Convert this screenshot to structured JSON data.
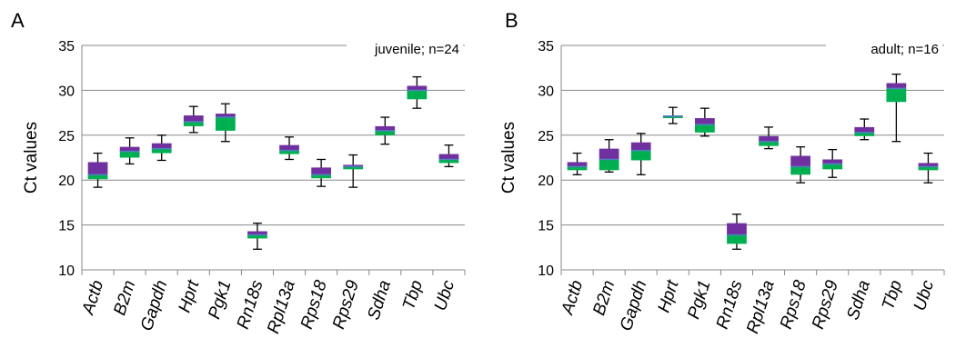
{
  "colors": {
    "upper_box": "#7030a0",
    "lower_box": "#00b050",
    "median": "#4f81bd",
    "whisker": "#000000",
    "grid": "#888888"
  },
  "chart_data": [
    {
      "type": "box",
      "panel_label": "A",
      "annotation": "juvenile; n=24",
      "ylabel": "Ct values",
      "ylim": [
        10,
        35
      ],
      "yticks": [
        10,
        15,
        20,
        25,
        30,
        35
      ],
      "grid": true,
      "categories": [
        "Actb",
        "B2m",
        "Gapdh",
        "Hprt",
        "Pgk1",
        "Rn18s",
        "Rpl13a",
        "Rps18",
        "Rps29",
        "Sdha",
        "Tbp",
        "Ubc"
      ],
      "boxes": [
        {
          "min": 19.2,
          "q1": 20.1,
          "median": 20.6,
          "q3": 22.0,
          "max": 23.0
        },
        {
          "min": 21.8,
          "q1": 22.5,
          "median": 23.2,
          "q3": 23.7,
          "max": 24.7
        },
        {
          "min": 22.2,
          "q1": 23.0,
          "median": 23.5,
          "q3": 24.1,
          "max": 25.0
        },
        {
          "min": 25.3,
          "q1": 26.0,
          "median": 26.5,
          "q3": 27.2,
          "max": 28.2
        },
        {
          "min": 24.3,
          "q1": 25.5,
          "median": 27.0,
          "q3": 27.4,
          "max": 28.5
        },
        {
          "min": 12.3,
          "q1": 13.5,
          "median": 13.9,
          "q3": 14.3,
          "max": 15.2
        },
        {
          "min": 22.3,
          "q1": 22.9,
          "median": 23.3,
          "q3": 23.9,
          "max": 24.8
        },
        {
          "min": 19.3,
          "q1": 20.2,
          "median": 20.6,
          "q3": 21.4,
          "max": 22.3
        },
        {
          "min": 19.2,
          "q1": 21.2,
          "median": 21.5,
          "q3": 21.7,
          "max": 22.8
        },
        {
          "min": 24.0,
          "q1": 25.0,
          "median": 25.5,
          "q3": 26.0,
          "max": 27.0
        },
        {
          "min": 28.0,
          "q1": 29.0,
          "median": 30.0,
          "q3": 30.5,
          "max": 31.5
        },
        {
          "min": 21.5,
          "q1": 21.9,
          "median": 22.3,
          "q3": 22.9,
          "max": 23.9
        }
      ]
    },
    {
      "type": "box",
      "panel_label": "B",
      "annotation": "adult; n=16",
      "ylabel": "Ct values",
      "ylim": [
        10,
        35
      ],
      "yticks": [
        10,
        15,
        20,
        25,
        30,
        35
      ],
      "grid": true,
      "categories": [
        "Actb",
        "B2m",
        "Gapdh",
        "Hprt",
        "Pgk1",
        "Rn18s",
        "Rpl13a",
        "Rps18",
        "Rps29",
        "Sdha",
        "Tbp",
        "Ubc"
      ],
      "boxes": [
        {
          "min": 20.6,
          "q1": 21.1,
          "median": 21.5,
          "q3": 22.0,
          "max": 23.0
        },
        {
          "min": 20.9,
          "q1": 21.1,
          "median": 22.3,
          "q3": 23.5,
          "max": 24.5
        },
        {
          "min": 20.6,
          "q1": 22.2,
          "median": 23.3,
          "q3": 24.2,
          "max": 25.2
        },
        {
          "min": 26.3,
          "q1": 26.9,
          "median": 27.1,
          "q3": 27.2,
          "max": 28.1
        },
        {
          "min": 24.9,
          "q1": 25.3,
          "median": 26.2,
          "q3": 26.9,
          "max": 28.0
        },
        {
          "min": 12.3,
          "q1": 12.9,
          "median": 13.9,
          "q3": 15.2,
          "max": 16.2
        },
        {
          "min": 23.5,
          "q1": 23.8,
          "median": 24.3,
          "q3": 24.9,
          "max": 25.9
        },
        {
          "min": 19.7,
          "q1": 20.6,
          "median": 21.5,
          "q3": 22.7,
          "max": 23.7
        },
        {
          "min": 20.3,
          "q1": 21.2,
          "median": 21.8,
          "q3": 22.3,
          "max": 23.4
        },
        {
          "min": 24.5,
          "q1": 24.9,
          "median": 25.3,
          "q3": 25.9,
          "max": 26.8
        },
        {
          "min": 24.3,
          "q1": 28.7,
          "median": 30.2,
          "q3": 30.8,
          "max": 31.8
        },
        {
          "min": 19.7,
          "q1": 21.1,
          "median": 21.5,
          "q3": 21.9,
          "max": 23.0
        }
      ]
    }
  ]
}
